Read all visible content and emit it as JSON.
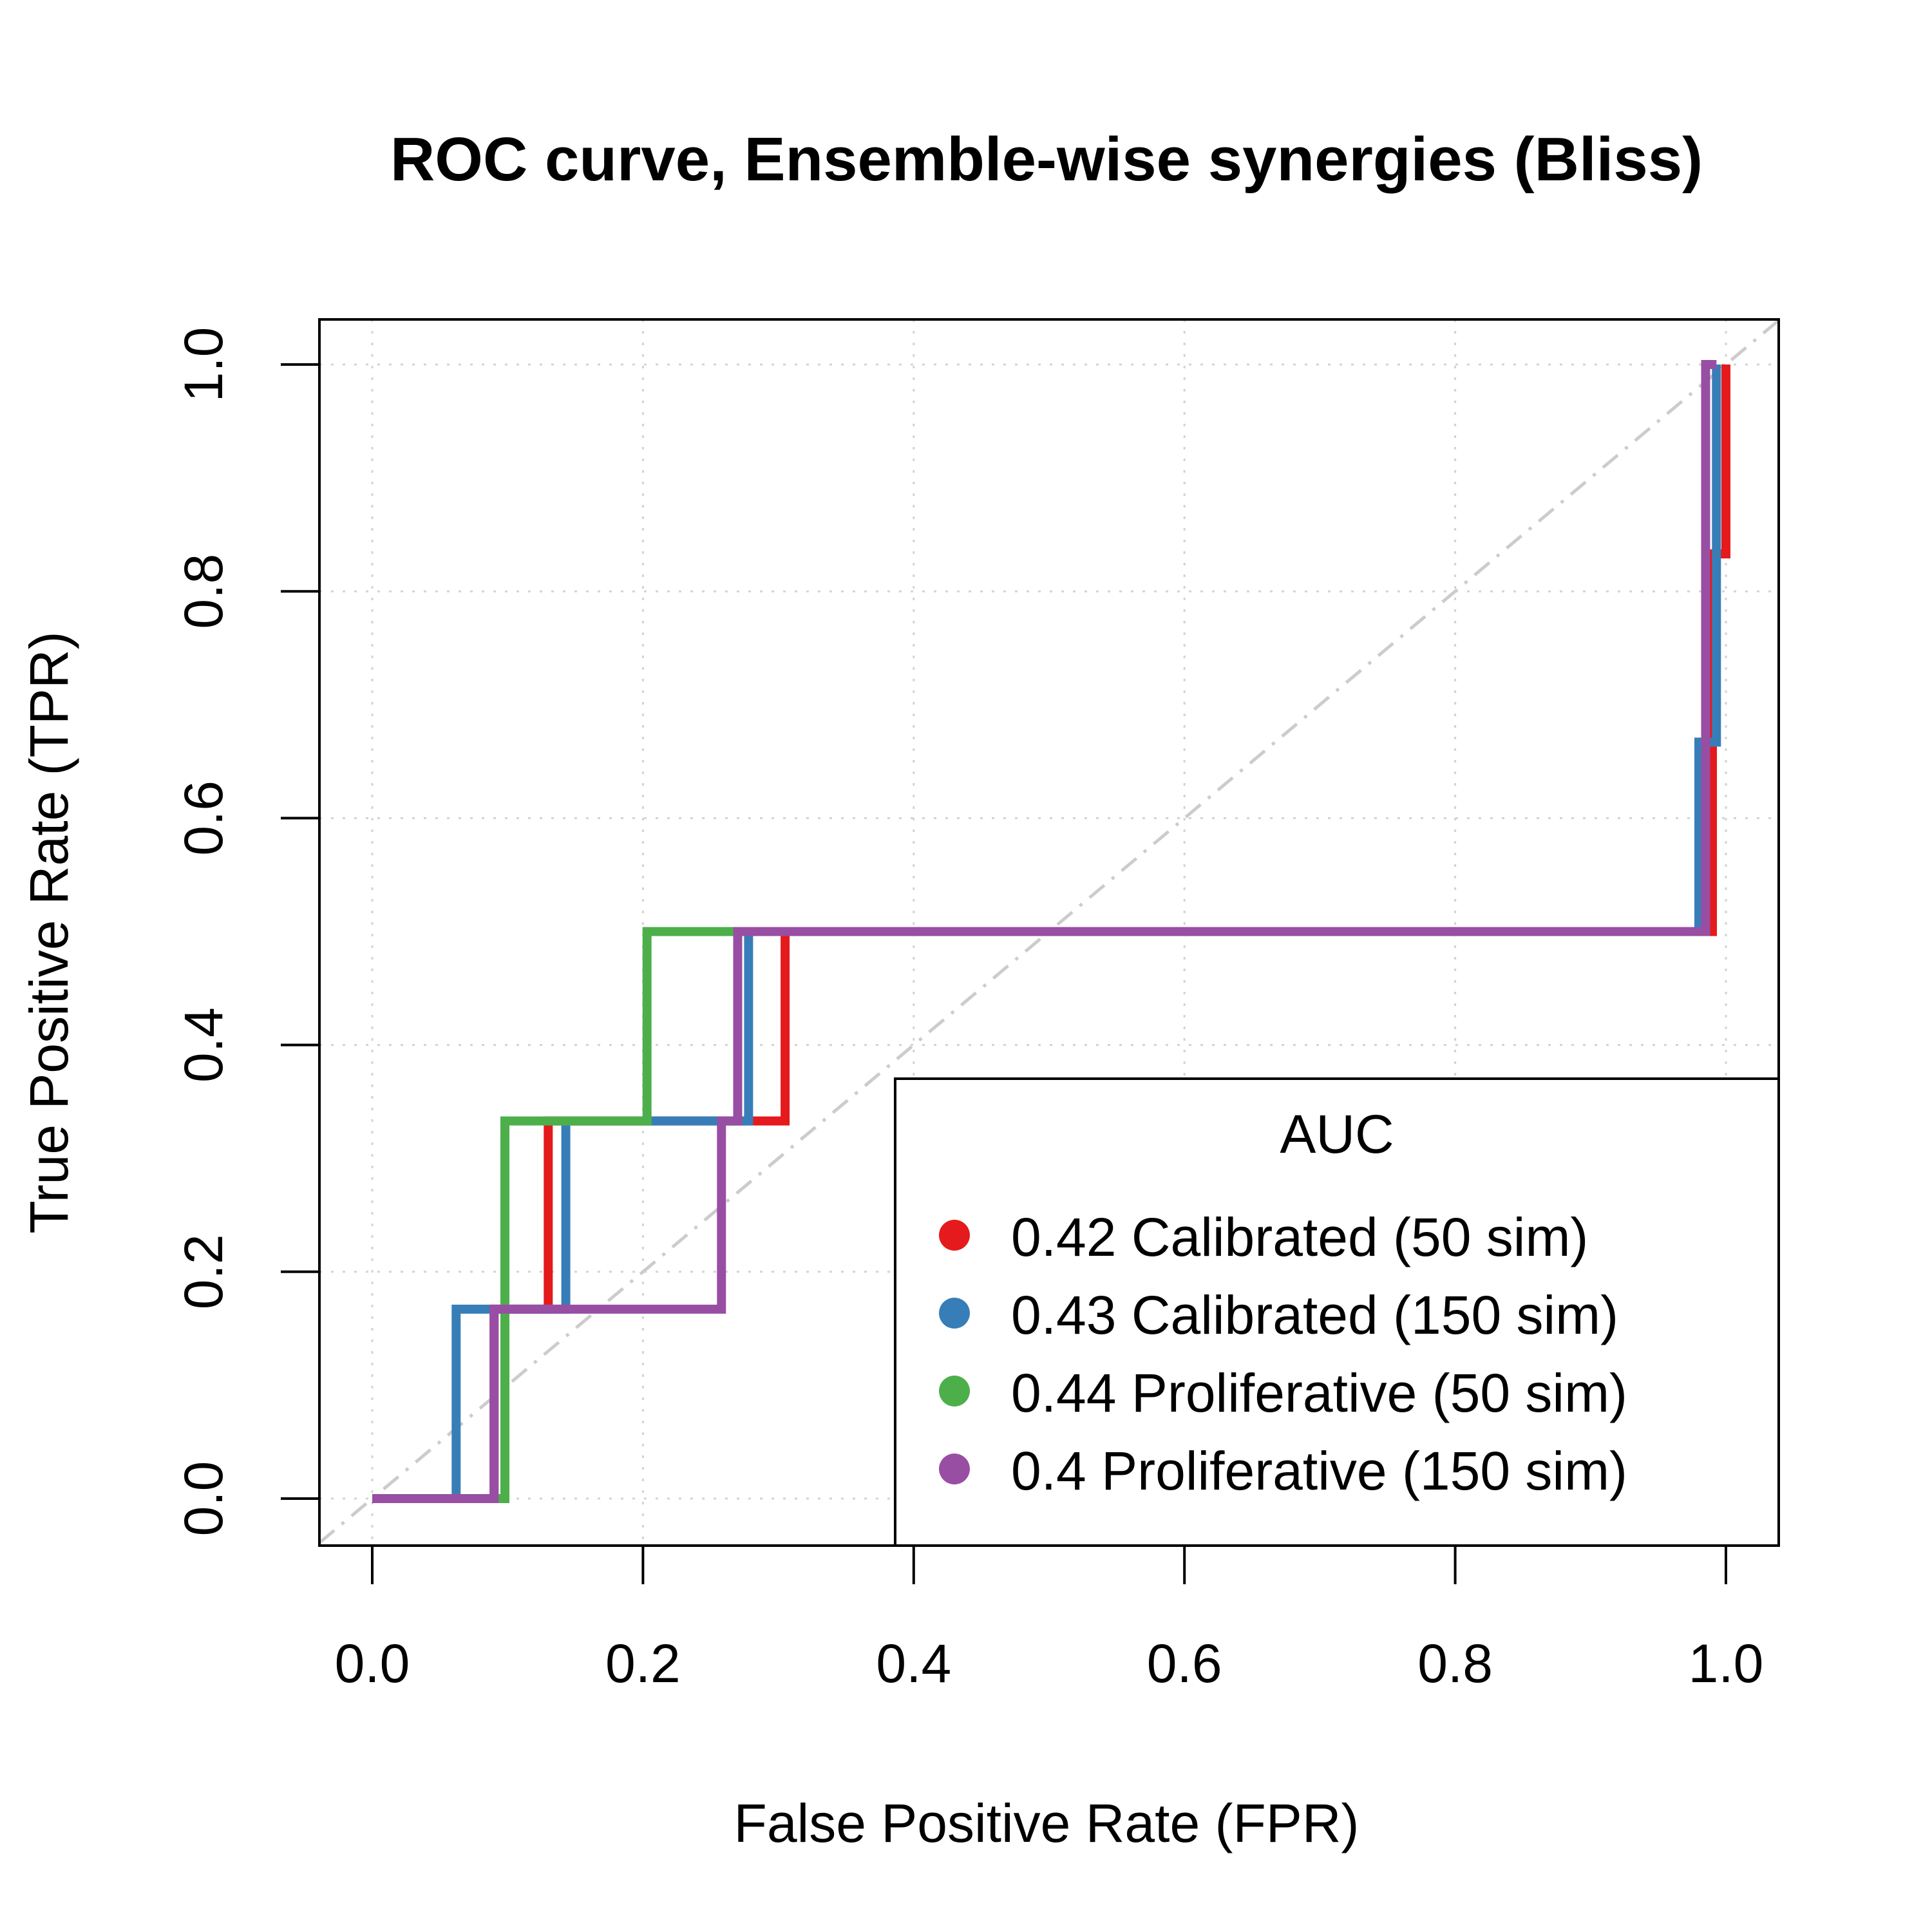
{
  "chart_data": {
    "type": "line",
    "title": "ROC curve, Ensemble-wise synergies (Bliss)",
    "xlabel": "False Positive Rate (FPR)",
    "ylabel": "True Positive Rate (TPR)",
    "xlim": [
      0,
      1
    ],
    "ylim": [
      0,
      1
    ],
    "xticks": [
      "0.0",
      "0.2",
      "0.4",
      "0.6",
      "0.8",
      "1.0"
    ],
    "yticks": [
      "0.0",
      "0.2",
      "0.4",
      "0.6",
      "0.8",
      "1.0"
    ],
    "grid": true,
    "diagonal_reference": true,
    "legend": {
      "title": "AUC",
      "placement": "bottom-right",
      "entries": [
        "0.42 Calibrated (50 sim)",
        "0.43 Calibrated (150 sim)",
        "0.44 Proliferative (50 sim)",
        "0.4 Proliferative (150 sim)"
      ]
    },
    "series": [
      {
        "name": "0.42 Calibrated (50 sim)",
        "color": "#E41A1C",
        "x": [
          0,
          0.09,
          0.09,
          0.13,
          0.13,
          0.305,
          0.305,
          0.99,
          0.99,
          1.0,
          1.0
        ],
        "y": [
          0,
          0,
          0.167,
          0.167,
          0.333,
          0.333,
          0.5,
          0.5,
          0.833,
          0.833,
          1.0
        ]
      },
      {
        "name": "0.43 Calibrated (150 sim)",
        "color": "#377EB8",
        "x": [
          0,
          0.062,
          0.062,
          0.143,
          0.143,
          0.278,
          0.278,
          0.98,
          0.98,
          0.993,
          0.993
        ],
        "y": [
          0,
          0,
          0.167,
          0.167,
          0.333,
          0.333,
          0.5,
          0.5,
          0.667,
          0.667,
          1.0
        ]
      },
      {
        "name": "0.44 Proliferative (50 sim)",
        "color": "#4DAF4A",
        "x": [
          0,
          0.098,
          0.098,
          0.203,
          0.203,
          0.985,
          0.985
        ],
        "y": [
          0,
          0,
          0.333,
          0.333,
          0.5,
          0.5,
          1.0
        ]
      },
      {
        "name": "0.4 Proliferative (150 sim)",
        "color": "#984EA3",
        "x": [
          0,
          0.09,
          0.09,
          0.258,
          0.258,
          0.27,
          0.27,
          0.985,
          0.985,
          0.993
        ],
        "y": [
          0,
          0,
          0.167,
          0.167,
          0.333,
          0.333,
          0.5,
          0.5,
          1.0,
          1.0
        ]
      }
    ]
  }
}
